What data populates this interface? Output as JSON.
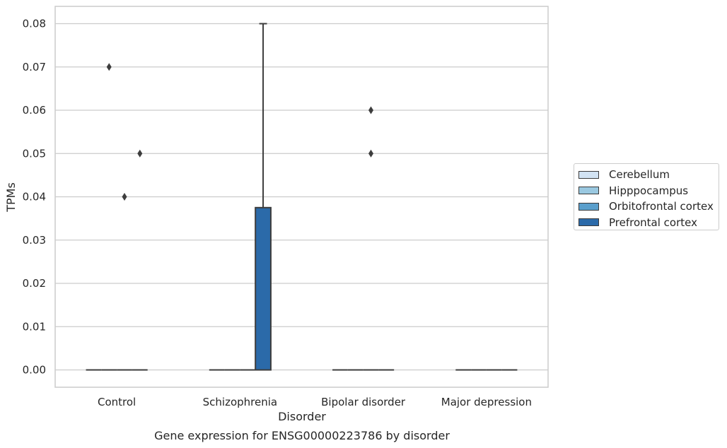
{
  "chart_data": {
    "type": "box",
    "title": "",
    "caption": "Gene expression for ENSG00000223786 by disorder",
    "xlabel": "Disorder",
    "ylabel": "TPMs",
    "ylim": [
      -0.004,
      0.084
    ],
    "yticks": [
      "0.00",
      "0.01",
      "0.02",
      "0.03",
      "0.04",
      "0.05",
      "0.06",
      "0.07",
      "0.08"
    ],
    "grid": true,
    "legend_position": "right",
    "categories": [
      "Control",
      "Schizophrenia",
      "Bipolar disorder",
      "Major depression"
    ],
    "series": [
      {
        "name": "Cerebellum",
        "color": "#d2e3f3",
        "boxes": [
          {
            "q1": 0,
            "median": 0,
            "q3": 0,
            "whisker_low": 0,
            "whisker_high": 0,
            "outliers": []
          },
          {
            "q1": 0,
            "median": 0,
            "q3": 0,
            "whisker_low": 0,
            "whisker_high": 0,
            "outliers": []
          },
          {
            "q1": 0,
            "median": 0,
            "q3": 0,
            "whisker_low": 0,
            "whisker_high": 0,
            "outliers": []
          },
          {
            "q1": 0,
            "median": 0,
            "q3": 0,
            "whisker_low": 0,
            "whisker_high": 0,
            "outliers": []
          }
        ]
      },
      {
        "name": "Hipppocampus",
        "color": "#9ac8e0",
        "boxes": [
          {
            "q1": 0,
            "median": 0,
            "q3": 0,
            "whisker_low": 0,
            "whisker_high": 0,
            "outliers": [
              0.07
            ]
          },
          {
            "q1": 0,
            "median": 0,
            "q3": 0,
            "whisker_low": 0,
            "whisker_high": 0,
            "outliers": []
          },
          {
            "q1": 0,
            "median": 0,
            "q3": 0,
            "whisker_low": 0,
            "whisker_high": 0,
            "outliers": []
          },
          {
            "q1": 0,
            "median": 0,
            "q3": 0,
            "whisker_low": 0,
            "whisker_high": 0,
            "outliers": []
          }
        ]
      },
      {
        "name": "Orbitofrontal cortex",
        "color": "#5a9fcc",
        "boxes": [
          {
            "q1": 0,
            "median": 0,
            "q3": 0,
            "whisker_low": 0,
            "whisker_high": 0,
            "outliers": [
              0.04
            ]
          },
          {
            "q1": 0,
            "median": 0,
            "q3": 0,
            "whisker_low": 0,
            "whisker_high": 0,
            "outliers": []
          },
          {
            "q1": 0,
            "median": 0,
            "q3": 0,
            "whisker_low": 0,
            "whisker_high": 0,
            "outliers": [
              0.06,
              0.05
            ]
          },
          {
            "q1": 0,
            "median": 0,
            "q3": 0,
            "whisker_low": 0,
            "whisker_high": 0,
            "outliers": []
          }
        ]
      },
      {
        "name": "Prefrontal cortex",
        "color": "#2b6aa9",
        "boxes": [
          {
            "q1": 0,
            "median": 0,
            "q3": 0,
            "whisker_low": 0,
            "whisker_high": 0,
            "outliers": [
              0.05
            ]
          },
          {
            "q1": 0,
            "median": 0,
            "q3": 0.0375,
            "whisker_low": 0,
            "whisker_high": 0.08,
            "outliers": []
          },
          {
            "q1": 0,
            "median": 0,
            "q3": 0,
            "whisker_low": 0,
            "whisker_high": 0,
            "outliers": []
          },
          {
            "q1": 0,
            "median": 0,
            "q3": 0,
            "whisker_low": 0,
            "whisker_high": 0,
            "outliers": []
          }
        ]
      }
    ]
  }
}
